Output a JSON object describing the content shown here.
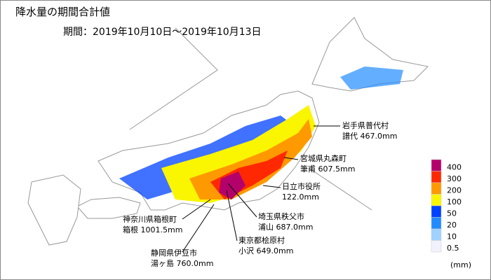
{
  "header": {
    "title": "降水量の期間合計値",
    "period": "期間：2019年10月10日～2019年10月13日"
  },
  "annotations": [
    {
      "place": "岩手県普代村",
      "reading": "譜代 467.0mm"
    },
    {
      "place": "宮城県丸森町",
      "reading": "筆甫 607.5mm"
    },
    {
      "place": "日立市役所",
      "reading": "122.0mm"
    },
    {
      "place": "埼玉県秩父市",
      "reading": "浦山 687.0mm"
    },
    {
      "place": "東京都桧原村",
      "reading": "小沢 649.0mm"
    },
    {
      "place": "神奈川県箱根町",
      "reading": "箱根 1001.5mm"
    },
    {
      "place": "静岡県伊豆市",
      "reading": "湯ヶ島 760.0mm"
    }
  ],
  "legend": {
    "unit": "(mm)",
    "items": [
      {
        "value": 400,
        "color": "#b4006a"
      },
      {
        "value": 300,
        "color": "#ff2800"
      },
      {
        "value": 200,
        "color": "#ff9900"
      },
      {
        "value": 100,
        "color": "#faf500"
      },
      {
        "value": 50,
        "color": "#0041ff"
      },
      {
        "value": 20,
        "color": "#218cff"
      },
      {
        "value": 10,
        "color": "#a0d2ff"
      },
      {
        "value": 0.5,
        "color": "#f2f2ff"
      }
    ]
  }
}
